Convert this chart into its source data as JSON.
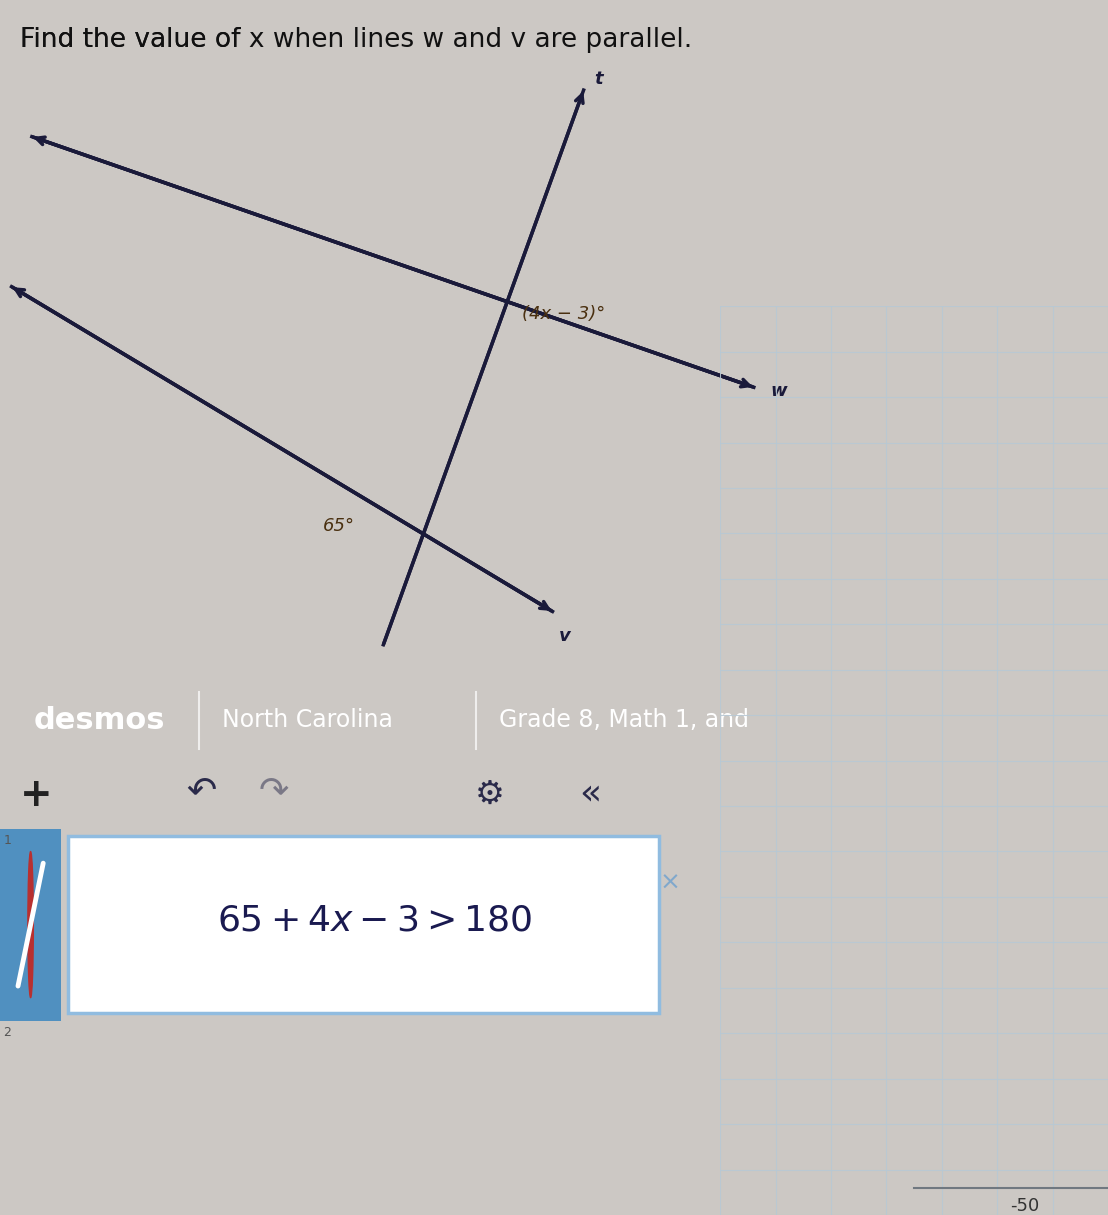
{
  "title": "Find the value of  x when lines  w  and  v  are parallel.",
  "title_fontsize": 19,
  "title_color": "#111111",
  "bg_color": "#ccc8c4",
  "diagram_bg": "#d8d4d0",
  "angle_label_1": "(4x − 3)°",
  "angle_label_2": "65°",
  "line_color": "#1a1a3a",
  "line_width": 2.5,
  "label_w": "w",
  "label_v": "v",
  "label_t": "t",
  "desmos_bar_color": "#2e6b30",
  "desmos_bar_text": "desmos",
  "desmos_bar_text2": "North Carolina",
  "desmos_bar_text3": "Grade 8, Math 1, and",
  "formula_fontsize": 26,
  "row1_label": "1",
  "row2_label": "2",
  "cell_bg": "#ffffff",
  "cell_border": "#90bce0",
  "x_label": "-50",
  "grid_color": "#b8c8d4",
  "circle_color1": "#b83030",
  "angle_color": "#4a3010"
}
